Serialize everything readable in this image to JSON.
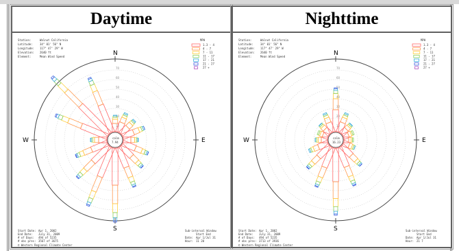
{
  "panels": [
    {
      "id": "day",
      "title": "Daytime",
      "station": {
        "rows": [
          [
            "Station",
            "Walnut California"
          ],
          [
            "Latitude",
            "34° 01' 56\" N"
          ],
          [
            "Longitude",
            "117° 47' 29\" W"
          ],
          [
            "Elevation",
            "2640 ft"
          ],
          [
            "Element",
            "Mean Wind Speed"
          ]
        ]
      },
      "footer_left": [
        [
          "Start Date:",
          "Apr 1, 2002"
        ],
        [
          "End Date:",
          "July 31, 2009"
        ],
        [
          "# of Days:",
          "494 of 5235"
        ],
        [
          "# obs pres:",
          "3567 of 3675"
        ]
      ],
      "footer_right": [
        [
          "Sub-interval Window",
          ""
        ],
        [
          "",
          "Start   End"
        ],
        [
          "Date:",
          "Apr 1/Jul 31"
        ],
        [
          "Hour:",
          "11   20"
        ]
      ],
      "credit": "© Western Regional Climate Center",
      "calm_label": "calm",
      "calm_value": "7.94",
      "petals": [
        {
          "dir": 0,
          "len": 24
        },
        {
          "dir": 22.5,
          "len": 30
        },
        {
          "dir": 45,
          "len": 28
        },
        {
          "dir": 67.5,
          "len": 34
        },
        {
          "dir": 90,
          "len": 22
        },
        {
          "dir": 112.5,
          "len": 40
        },
        {
          "dir": 135,
          "len": 44
        },
        {
          "dir": 157.5,
          "len": 62
        },
        {
          "dir": 180,
          "len": 108
        },
        {
          "dir": 202.5,
          "len": 92
        },
        {
          "dir": 225,
          "len": 66
        },
        {
          "dir": 247.5,
          "len": 50
        },
        {
          "dir": 270,
          "len": 24
        },
        {
          "dir": 292.5,
          "len": 82
        },
        {
          "dir": 315,
          "len": 118
        },
        {
          "dir": 337.5,
          "len": 86
        }
      ]
    },
    {
      "id": "night",
      "title": "Nighttime",
      "station": {
        "rows": [
          [
            "Station",
            "Walnut California"
          ],
          [
            "Latitude",
            "34° 01' 56\" N"
          ],
          [
            "Longitude",
            "117° 47' 29\" W"
          ],
          [
            "Elevation",
            "2640 ft"
          ],
          [
            "Element",
            "Mean Wind Speed"
          ]
        ]
      },
      "footer_left": [
        [
          "Start Date:",
          "Apr 1, 2002"
        ],
        [
          "End Date:",
          "July 31, 2009"
        ],
        [
          "# of Days:",
          "494 of 5235"
        ],
        [
          "# obs pres:",
          "3713 of 3936"
        ]
      ],
      "footer_right": [
        [
          "Sub-interval Window",
          ""
        ],
        [
          "",
          "Start   End"
        ],
        [
          "Date:",
          "Apr 1/Jul 31"
        ],
        [
          "Hour:",
          "21   7"
        ]
      ],
      "credit": "© Western Regional Climate Center",
      "calm_label": "calm",
      "calm_value": "16.23",
      "petals": [
        {
          "dir": 0,
          "len": 64
        },
        {
          "dir": 22.5,
          "len": 30
        },
        {
          "dir": 45,
          "len": 20
        },
        {
          "dir": 67.5,
          "len": 16
        },
        {
          "dir": 90,
          "len": 14
        },
        {
          "dir": 112.5,
          "len": 18
        },
        {
          "dir": 135,
          "len": 40
        },
        {
          "dir": 157.5,
          "len": 60
        },
        {
          "dir": 180,
          "len": 98
        },
        {
          "dir": 202.5,
          "len": 62
        },
        {
          "dir": 225,
          "len": 46
        },
        {
          "dir": 247.5,
          "len": 30
        },
        {
          "dir": 270,
          "len": 18
        },
        {
          "dir": 292.5,
          "len": 16
        },
        {
          "dir": 315,
          "len": 20
        },
        {
          "dir": 337.5,
          "len": 30
        }
      ]
    }
  ],
  "compass": {
    "n": "N",
    "s": "S",
    "e": "E",
    "w": "W"
  },
  "ring_labels": [
    "10",
    "20",
    "30",
    "40",
    "50",
    "60",
    "70"
  ],
  "legend": {
    "title": "MPH",
    "bins": [
      "1.3 - 4",
      "4 - 7",
      "7 - 11",
      "11 - 17",
      "17 - 21",
      "21 - 27",
      "27 +"
    ],
    "colors": [
      "#ff6a6a",
      "#ff9a50",
      "#ffd040",
      "#8ad060",
      "#40b0e0",
      "#4060e0",
      "#b050c0"
    ]
  }
}
